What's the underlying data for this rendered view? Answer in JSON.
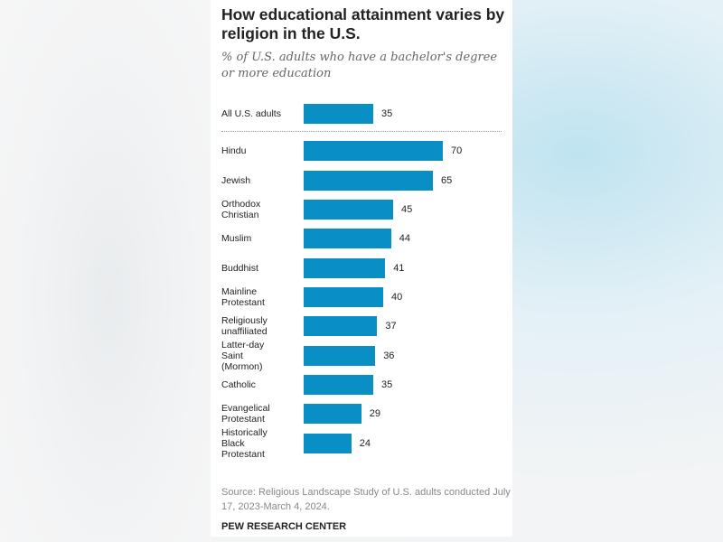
{
  "chart_data": {
    "type": "bar",
    "orientation": "horizontal",
    "title": "How educational attainment varies by religion in the U.S.",
    "subtitle": "% of U.S. adults who have a bachelor's degree or more education",
    "categories": [
      "All U.S. adults",
      "Hindu",
      "Jewish",
      "Orthodox\nChristian",
      "Muslim",
      "Buddhist",
      "Mainline\nProtestant",
      "Religiously\nunaffiliated",
      "Latter-day\nSaint\n(Mormon)",
      "Catholic",
      "Evangelical\nProtestant",
      "Historically\nBlack\nProtestant"
    ],
    "values": [
      35,
      70,
      65,
      45,
      44,
      41,
      40,
      37,
      36,
      35,
      29,
      24
    ],
    "data_labels": [
      "35",
      "70",
      "65",
      "45",
      "44",
      "41",
      "40",
      "37",
      "36",
      "35",
      "29",
      "24"
    ],
    "xlim": [
      0,
      100
    ],
    "grid": false,
    "bar_color": "#0a8fc4",
    "source": "Source: Religious Landscape Study of U.S. adults conducted July 17, 2023-March 4, 2024.",
    "brand": "PEW RESEARCH CENTER"
  }
}
